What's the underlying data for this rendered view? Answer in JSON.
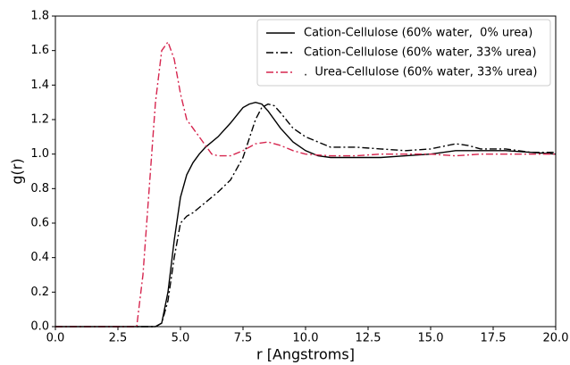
{
  "chart_data": {
    "type": "line",
    "x_label": "r [Angstroms]",
    "y_label": "g(r)",
    "xlim": [
      0,
      20
    ],
    "ylim": [
      0,
      1.8
    ],
    "xticks": [
      {
        "value": 0,
        "label": "0.0"
      },
      2.5,
      {
        "value": 5,
        "label": "5.0"
      },
      7.5,
      {
        "value": 10,
        "label": "10.0"
      },
      12.5,
      {
        "value": 15,
        "label": "15.0"
      },
      17.5,
      {
        "value": 20,
        "label": "20.0"
      }
    ],
    "yticks": [
      {
        "value": 0,
        "label": "0.0"
      },
      0.2,
      0.4,
      0.6,
      0.8,
      {
        "value": 1,
        "label": "1.0"
      },
      1.2,
      1.4,
      1.6,
      1.8
    ],
    "grid": false,
    "legend": "upper right",
    "series": [
      {
        "name": "Cation-Cellulose (60% water,  0% urea)",
        "color": "#000000",
        "dash": "solid",
        "x": [
          0,
          4.0,
          4.25,
          4.5,
          4.75,
          5.0,
          5.25,
          5.5,
          5.75,
          6.0,
          6.5,
          7.0,
          7.5,
          7.75,
          8.0,
          8.25,
          8.5,
          9.0,
          9.5,
          10.0,
          10.5,
          11,
          12,
          13,
          14,
          15,
          16,
          17,
          18,
          19,
          20
        ],
        "values": [
          0,
          0,
          0.02,
          0.2,
          0.5,
          0.75,
          0.88,
          0.95,
          1.0,
          1.04,
          1.1,
          1.18,
          1.27,
          1.29,
          1.3,
          1.29,
          1.25,
          1.15,
          1.07,
          1.02,
          0.99,
          0.98,
          0.98,
          0.98,
          0.99,
          1.0,
          1.02,
          1.02,
          1.02,
          1.01,
          1.0
        ]
      },
      {
        "name": "Cation-Cellulose (60% water, 33% urea)",
        "color": "#000000",
        "dash": "dashdot",
        "x": [
          0,
          4.0,
          4.25,
          4.5,
          4.75,
          5.0,
          5.25,
          5.5,
          6.0,
          6.5,
          7.0,
          7.5,
          8.0,
          8.25,
          8.5,
          8.75,
          9.0,
          9.5,
          10.0,
          10.5,
          11,
          12,
          13,
          14,
          15,
          16,
          16.5,
          17,
          18,
          19,
          20
        ],
        "values": [
          0,
          0,
          0.02,
          0.15,
          0.4,
          0.6,
          0.64,
          0.66,
          0.72,
          0.78,
          0.85,
          0.98,
          1.2,
          1.27,
          1.29,
          1.28,
          1.24,
          1.15,
          1.1,
          1.07,
          1.04,
          1.04,
          1.03,
          1.02,
          1.03,
          1.06,
          1.05,
          1.03,
          1.03,
          1.01,
          1.01
        ]
      },
      {
        "name": ".  Urea-Cellulose (60% water, 33% urea)",
        "color": "#d6264f",
        "dash": "dashdot",
        "x": [
          0,
          3.25,
          3.5,
          3.75,
          4.0,
          4.25,
          4.5,
          4.75,
          5.0,
          5.25,
          5.5,
          5.75,
          6.0,
          6.25,
          6.5,
          7.0,
          7.5,
          8,
          8.5,
          9,
          9.5,
          10,
          11,
          12,
          13,
          14,
          15,
          16,
          17,
          18,
          19,
          20
        ],
        "values": [
          0,
          0,
          0.3,
          0.8,
          1.3,
          1.6,
          1.65,
          1.55,
          1.35,
          1.2,
          1.15,
          1.1,
          1.05,
          1.0,
          0.99,
          0.99,
          1.02,
          1.06,
          1.07,
          1.05,
          1.02,
          1.0,
          0.99,
          0.99,
          1.0,
          1.0,
          1.0,
          0.99,
          1.0,
          1.0,
          1.0,
          1.0
        ]
      }
    ]
  }
}
